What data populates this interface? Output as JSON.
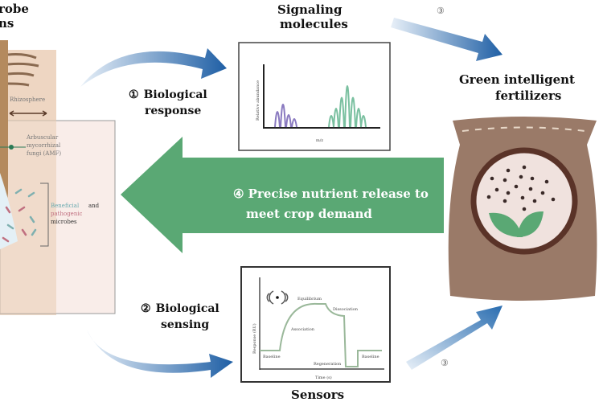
{
  "left_panel": {
    "title_line1": "robe",
    "title_line2": "ns",
    "rhizosphere": "Rhizosphere",
    "amf_line1": "Arbuscular",
    "amf_line2": "mycorrhizal",
    "amf_line3": "fungi (AMF)",
    "microbes_beneficial": "Beneficial",
    "microbes_and": "and",
    "microbes_pathogenic": "pathogenic",
    "microbes_line3": "microbes"
  },
  "step1": {
    "number": "①",
    "line1": "Biological",
    "line2": "response"
  },
  "step2": {
    "number": "②",
    "line1": "Biological",
    "line2": "sensing"
  },
  "step3": {
    "number": "③"
  },
  "step4": {
    "line1": "④  Precise nutrient release to",
    "line2": "meet crop demand"
  },
  "signaling": {
    "title_line1": "Signaling",
    "title_line2": "molecules",
    "ylabel": "Relative abundance",
    "xlabel": "m/z"
  },
  "sensors": {
    "title": "Sensors",
    "ylabel": "Response (RU)",
    "xlabel": "Time (s)",
    "labels": {
      "equilibrium": "Equilibrium",
      "dissociation": "Dissociation",
      "association": "Association",
      "baseline1": "Baseline",
      "regeneration": "Regeneration",
      "baseline2": "Baseline"
    }
  },
  "fertilizer": {
    "title_line1": "Green intelligent",
    "title_line2": "fertilizers"
  },
  "colors": {
    "green_arrow": "#5aa874",
    "blue_arrow": "#2e6fb0",
    "bag": "#9a7a68"
  }
}
